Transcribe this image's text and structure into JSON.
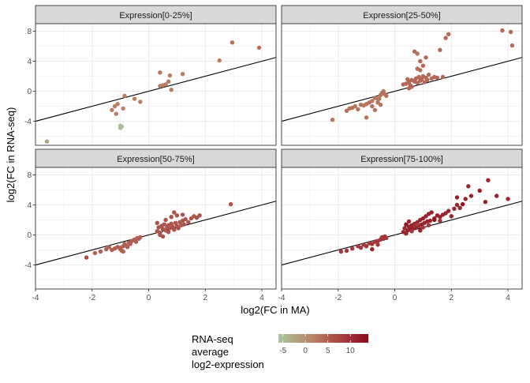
{
  "chart_data": {
    "type": "scatter",
    "facet_titles": [
      "Expression[0-25%]",
      "Expression[25-50%]",
      "Expression[50-75%]",
      "Expression[75-100%]"
    ],
    "xlabel": "log2(FC in MA)",
    "ylabel": "log2(FC in RNA-seq)",
    "xlim": [
      -4,
      4.5
    ],
    "ylim": [
      -7.2,
      9
    ],
    "x_ticks": [
      -4,
      -2,
      0,
      2,
      4
    ],
    "y_ticks": [
      -4,
      0,
      4,
      8
    ],
    "x_tick_labels": [
      "-4",
      "-2",
      "0",
      "2",
      "4"
    ],
    "y_tick_labels": [
      "-4",
      "0",
      "4",
      "8"
    ],
    "reference_line": {
      "slope": 1,
      "intercept": 0
    },
    "grid": true,
    "legend": {
      "title_lines": [
        "RNA-seq",
        "average",
        "log2-expression"
      ],
      "placement": "bottom",
      "ticks": [
        -5,
        0,
        5,
        10
      ],
      "tick_labels": [
        "-5",
        "0",
        "5",
        "10"
      ],
      "range": [
        -6,
        14
      ],
      "colors": [
        "#a8c7a0",
        "#b97d62",
        "#a3363a",
        "#8b0a1c"
      ]
    },
    "panels": [
      {
        "title": "Expression[0-25%]",
        "points": [
          [
            -3.6,
            -6.7,
            -2
          ],
          [
            -1.0,
            -4.6,
            -5
          ],
          [
            -1.0,
            -4.9,
            -5
          ],
          [
            -0.95,
            -4.7,
            -5
          ],
          [
            -1.2,
            -2.0,
            2
          ],
          [
            -1.3,
            -2.5,
            2
          ],
          [
            -1.1,
            -1.7,
            2
          ],
          [
            -0.9,
            -2.3,
            2
          ],
          [
            -0.85,
            -0.6,
            2
          ],
          [
            -0.5,
            -1.0,
            2
          ],
          [
            -0.3,
            -1.4,
            2
          ],
          [
            -1.15,
            -3.0,
            2
          ],
          [
            0.4,
            2.5,
            3
          ],
          [
            0.5,
            0.8,
            2
          ],
          [
            0.4,
            0.7,
            2
          ],
          [
            0.7,
            1.3,
            2
          ],
          [
            0.8,
            0.2,
            2
          ],
          [
            0.6,
            0.9,
            2
          ],
          [
            0.75,
            2.1,
            2
          ],
          [
            1.2,
            2.3,
            2
          ],
          [
            2.5,
            4.1,
            2
          ],
          [
            2.95,
            6.5,
            3
          ],
          [
            3.9,
            5.8,
            3
          ]
        ]
      },
      {
        "title": "Expression[25-50%]",
        "points": [
          [
            -2.2,
            -3.8,
            3
          ],
          [
            -1.7,
            -2.6,
            3
          ],
          [
            -1.6,
            -2.3,
            3
          ],
          [
            -1.5,
            -2.2,
            3
          ],
          [
            -1.4,
            -2.0,
            3
          ],
          [
            -1.3,
            -2.4,
            3
          ],
          [
            -1.2,
            -1.8,
            3
          ],
          [
            -1.1,
            -1.9,
            3
          ],
          [
            -1.0,
            -1.7,
            3
          ],
          [
            -0.9,
            -1.5,
            3
          ],
          [
            -0.8,
            -1.3,
            3
          ],
          [
            -0.7,
            -0.9,
            3
          ],
          [
            -0.6,
            -1.0,
            3
          ],
          [
            -0.5,
            -0.5,
            3
          ],
          [
            -0.45,
            -0.2,
            3
          ],
          [
            -0.4,
            0.0,
            3
          ],
          [
            -0.35,
            -0.4,
            3
          ],
          [
            -0.5,
            -1.8,
            3
          ],
          [
            -0.6,
            -1.5,
            3
          ],
          [
            -0.7,
            -2.5,
            3
          ],
          [
            -0.8,
            -2.0,
            3
          ],
          [
            -1.0,
            -3.5,
            3
          ],
          [
            -0.55,
            -1.0,
            3
          ],
          [
            -0.3,
            -0.6,
            3
          ],
          [
            0.3,
            0.9,
            4
          ],
          [
            0.4,
            1.0,
            4
          ],
          [
            0.5,
            1.2,
            4
          ],
          [
            0.55,
            0.8,
            4
          ],
          [
            0.6,
            1.5,
            4
          ],
          [
            0.7,
            1.3,
            4
          ],
          [
            0.75,
            1.7,
            4
          ],
          [
            0.8,
            1.1,
            4
          ],
          [
            0.85,
            1.9,
            4
          ],
          [
            0.9,
            1.4,
            4
          ],
          [
            0.95,
            1.6,
            4
          ],
          [
            1.0,
            2.0,
            4
          ],
          [
            1.05,
            1.2,
            4
          ],
          [
            1.1,
            1.8,
            4
          ],
          [
            1.15,
            1.5,
            4
          ],
          [
            1.2,
            2.2,
            4
          ],
          [
            1.3,
            1.7,
            4
          ],
          [
            1.4,
            1.9,
            4
          ],
          [
            1.5,
            1.8,
            4
          ],
          [
            1.7,
            1.9,
            4
          ],
          [
            0.8,
            3.0,
            4
          ],
          [
            0.9,
            2.8,
            4
          ],
          [
            1.0,
            3.4,
            4
          ],
          [
            1.1,
            4.5,
            4
          ],
          [
            0.8,
            5.0,
            3
          ],
          [
            0.7,
            5.3,
            4
          ],
          [
            0.9,
            4.0,
            4
          ],
          [
            1.6,
            5.5,
            4
          ],
          [
            1.8,
            7.1,
            4
          ],
          [
            1.9,
            7.6,
            4
          ],
          [
            3.8,
            8.1,
            4
          ],
          [
            4.1,
            7.9,
            4
          ],
          [
            4.15,
            6.1,
            4
          ],
          [
            0.5,
            0.4,
            4
          ],
          [
            0.6,
            0.6,
            4
          ],
          [
            0.45,
            1.6,
            4
          ]
        ]
      },
      {
        "title": "Expression[50-75%]",
        "points": [
          [
            -2.2,
            -3.0,
            7
          ],
          [
            -1.9,
            -2.4,
            5
          ],
          [
            -1.7,
            -2.2,
            5
          ],
          [
            -1.5,
            -1.9,
            5
          ],
          [
            -1.4,
            -1.6,
            5
          ],
          [
            -1.3,
            -2.0,
            5
          ],
          [
            -1.2,
            -1.8,
            5
          ],
          [
            -1.1,
            -1.6,
            5
          ],
          [
            -1.0,
            -1.7,
            5
          ],
          [
            -0.95,
            -2.1,
            5
          ],
          [
            -0.9,
            -1.5,
            5
          ],
          [
            -0.85,
            -1.2,
            5
          ],
          [
            -0.8,
            -1.4,
            5
          ],
          [
            -0.7,
            -1.0,
            5
          ],
          [
            -0.6,
            -0.8,
            5
          ],
          [
            -0.5,
            -0.6,
            5
          ],
          [
            -0.45,
            -0.9,
            5
          ],
          [
            -0.4,
            -0.4,
            5
          ],
          [
            -0.35,
            -0.5,
            5
          ],
          [
            -0.3,
            -0.3,
            5
          ],
          [
            -0.9,
            -2.2,
            5
          ],
          [
            -1.0,
            -1.9,
            5
          ],
          [
            -0.75,
            -1.6,
            5
          ],
          [
            -0.65,
            -1.2,
            5
          ],
          [
            0.3,
            0.5,
            6
          ],
          [
            0.35,
            1.0,
            6
          ],
          [
            0.4,
            0.3,
            6
          ],
          [
            0.45,
            1.2,
            6
          ],
          [
            0.5,
            0.8,
            6
          ],
          [
            0.55,
            1.4,
            6
          ],
          [
            0.6,
            0.6,
            6
          ],
          [
            0.65,
            1.0,
            6
          ],
          [
            0.7,
            1.3,
            6
          ],
          [
            0.75,
            0.9,
            6
          ],
          [
            0.8,
            1.5,
            6
          ],
          [
            0.85,
            1.1,
            6
          ],
          [
            0.9,
            0.7,
            6
          ],
          [
            0.95,
            1.6,
            6
          ],
          [
            1.0,
            1.2,
            6
          ],
          [
            1.05,
            0.9,
            6
          ],
          [
            1.1,
            1.7,
            6
          ],
          [
            1.15,
            1.3,
            6
          ],
          [
            1.2,
            1.9,
            6
          ],
          [
            1.25,
            1.4,
            6
          ],
          [
            1.3,
            2.1,
            6
          ],
          [
            1.4,
            1.7,
            6
          ],
          [
            1.5,
            2.2,
            6
          ],
          [
            1.6,
            2.5,
            6
          ],
          [
            1.7,
            2.3,
            6
          ],
          [
            1.8,
            2.6,
            6
          ],
          [
            0.9,
            3.0,
            6
          ],
          [
            1.2,
            2.7,
            6
          ],
          [
            0.3,
            1.6,
            6
          ],
          [
            0.4,
            0.0,
            6
          ],
          [
            0.5,
            -0.2,
            6
          ],
          [
            2.9,
            4.1,
            6
          ],
          [
            0.6,
            2.0,
            6
          ],
          [
            0.8,
            2.4,
            6
          ],
          [
            1.0,
            2.6,
            6
          ],
          [
            0.7,
            0.4,
            6
          ]
        ]
      },
      {
        "title": "Expression[75-100%]",
        "points": [
          [
            -1.9,
            -2.2,
            9
          ],
          [
            -1.7,
            -2.1,
            9
          ],
          [
            -1.5,
            -1.8,
            9
          ],
          [
            -1.3,
            -1.5,
            9
          ],
          [
            -1.1,
            -1.3,
            9
          ],
          [
            -1.0,
            -1.5,
            9
          ],
          [
            -0.9,
            -1.1,
            9
          ],
          [
            -0.8,
            -1.2,
            9
          ],
          [
            -0.7,
            -0.9,
            9
          ],
          [
            -0.6,
            -0.8,
            9
          ],
          [
            -0.5,
            -0.6,
            9
          ],
          [
            -0.45,
            -0.3,
            9
          ],
          [
            -0.4,
            -0.5,
            9
          ],
          [
            -0.35,
            -0.2,
            9
          ],
          [
            -0.3,
            -0.4,
            9
          ],
          [
            -0.8,
            -1.9,
            11
          ],
          [
            -1.2,
            -1.7,
            9
          ],
          [
            -0.6,
            -1.3,
            9
          ],
          [
            0.3,
            0.4,
            11
          ],
          [
            0.35,
            0.9,
            11
          ],
          [
            0.4,
            0.2,
            11
          ],
          [
            0.45,
            0.6,
            11
          ],
          [
            0.5,
            1.1,
            11
          ],
          [
            0.55,
            0.8,
            11
          ],
          [
            0.6,
            1.3,
            11
          ],
          [
            0.65,
            0.9,
            11
          ],
          [
            0.7,
            1.5,
            11
          ],
          [
            0.75,
            1.0,
            11
          ],
          [
            0.8,
            1.7,
            11
          ],
          [
            0.85,
            1.2,
            11
          ],
          [
            0.9,
            2.0,
            11
          ],
          [
            0.95,
            1.4,
            11
          ],
          [
            1.0,
            2.2,
            11
          ],
          [
            1.05,
            1.6,
            11
          ],
          [
            1.1,
            2.5,
            11
          ],
          [
            1.15,
            1.8,
            11
          ],
          [
            1.2,
            2.8,
            11
          ],
          [
            1.25,
            1.9,
            11
          ],
          [
            1.3,
            3.0,
            11
          ],
          [
            1.4,
            2.2,
            11
          ],
          [
            1.5,
            2.6,
            11
          ],
          [
            1.6,
            2.4,
            11
          ],
          [
            1.7,
            2.7,
            11
          ],
          [
            1.8,
            2.9,
            11
          ],
          [
            1.9,
            3.2,
            11
          ],
          [
            2.0,
            2.5,
            11
          ],
          [
            2.1,
            3.5,
            11
          ],
          [
            2.2,
            4.0,
            11
          ],
          [
            2.3,
            3.6,
            11
          ],
          [
            2.5,
            4.8,
            11
          ],
          [
            2.6,
            6.5,
            11
          ],
          [
            2.7,
            5.2,
            11
          ],
          [
            3.0,
            5.9,
            12
          ],
          [
            3.3,
            7.3,
            11
          ],
          [
            3.6,
            5.2,
            11
          ],
          [
            3.2,
            4.4,
            11
          ],
          [
            2.2,
            5.0,
            11
          ],
          [
            4.0,
            4.8,
            11
          ],
          [
            0.5,
            1.8,
            11
          ],
          [
            0.9,
            0.6,
            11
          ],
          [
            1.4,
            2.0,
            13
          ],
          [
            0.8,
            1.4,
            9
          ],
          [
            0.6,
            0.5,
            9
          ],
          [
            1.0,
            1.0,
            9
          ],
          [
            0.4,
            1.4,
            13
          ],
          [
            1.2,
            1.3,
            9
          ],
          [
            1.6,
            1.9,
            9
          ],
          [
            2.4,
            4.1,
            13
          ]
        ]
      }
    ]
  }
}
